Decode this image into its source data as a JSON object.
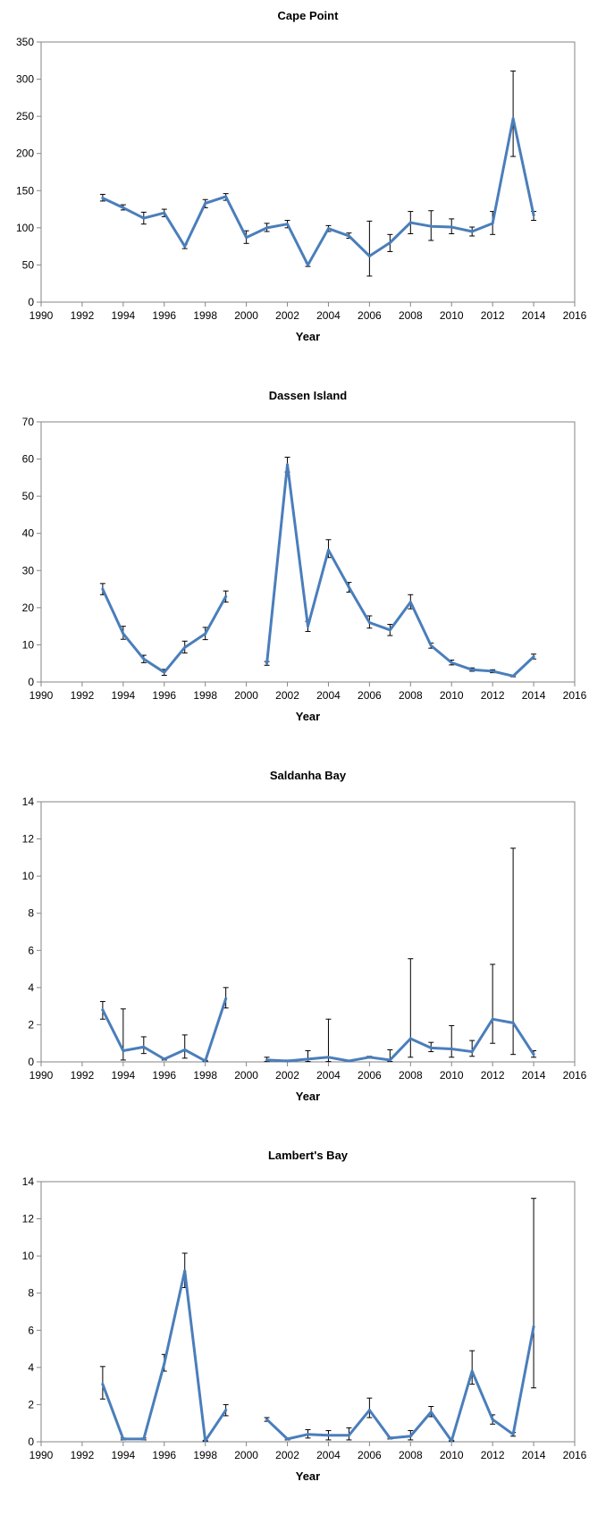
{
  "chart_data": [
    {
      "type": "line",
      "title": "Cape Point",
      "xlabel": "Year",
      "ylabel": "",
      "xlim": [
        1990,
        2016
      ],
      "ylim": [
        0,
        350
      ],
      "x_ticks": [
        1990,
        1992,
        1994,
        1996,
        1998,
        2000,
        2002,
        2004,
        2006,
        2008,
        2010,
        2012,
        2014,
        2016
      ],
      "y_ticks": [
        0,
        50,
        100,
        150,
        200,
        250,
        300,
        350
      ],
      "line_color": "#4a7ebb",
      "series": [
        {
          "segments": [
            {
              "x": [
                1993,
                1994,
                1995,
                1996,
                1997,
                1998,
                1999,
                2000,
                2001,
                2002,
                2003,
                2004,
                2005,
                2006,
                2007,
                2008,
                2009,
                2010,
                2011,
                2012,
                2013,
                2014
              ],
              "y": [
                140,
                127,
                113,
                120,
                75,
                133,
                142,
                87,
                100,
                105,
                50,
                99,
                89,
                62,
                80,
                107,
                102,
                101,
                95,
                106,
                247,
                117
              ],
              "err_high": [
                145,
                131,
                121,
                125,
                78,
                138,
                146,
                96,
                106,
                110,
                53,
                103,
                93,
                109,
                91,
                122,
                123,
                112,
                101,
                122,
                311,
                122
              ],
              "err_low": [
                136,
                124,
                105,
                115,
                72,
                127,
                137,
                79,
                95,
                100,
                48,
                95,
                86,
                35,
                68,
                92,
                83,
                92,
                89,
                91,
                196,
                110
              ]
            }
          ]
        }
      ]
    },
    {
      "type": "line",
      "title": "Dassen Island",
      "xlabel": "Year",
      "ylabel": "",
      "xlim": [
        1990,
        2016
      ],
      "ylim": [
        0,
        70
      ],
      "x_ticks": [
        1990,
        1992,
        1994,
        1996,
        1998,
        2000,
        2002,
        2004,
        2006,
        2008,
        2010,
        2012,
        2014,
        2016
      ],
      "y_ticks": [
        0,
        10,
        20,
        30,
        40,
        50,
        60,
        70
      ],
      "line_color": "#4a7ebb",
      "series": [
        {
          "segments": [
            {
              "x": [
                1993,
                1994,
                1995,
                1996,
                1997,
                1998,
                1999
              ],
              "y": [
                25,
                13,
                6.2,
                2.6,
                9.3,
                13,
                23
              ],
              "err_high": [
                26.5,
                15,
                7.2,
                3.4,
                11,
                14.7,
                24.5
              ],
              "err_low": [
                23.5,
                11.5,
                5.2,
                1.8,
                7.8,
                11.4,
                21.5
              ]
            },
            {
              "x": [
                2001,
                2002,
                2003,
                2004,
                2005,
                2006,
                2007,
                2008,
                2009,
                2010,
                2011,
                2012,
                2013,
                2014
              ],
              "y": [
                5,
                58.5,
                15,
                35.5,
                25.5,
                16,
                14,
                21.5,
                9.8,
                5.2,
                3.3,
                2.9,
                1.6,
                6.8
              ],
              "err_high": [
                5.5,
                60.5,
                16.3,
                38.3,
                26.8,
                17.8,
                15.5,
                23.5,
                10.5,
                5.9,
                3.8,
                3.3,
                1.8,
                7.5
              ],
              "err_low": [
                4.5,
                56.5,
                13.6,
                33.5,
                24.2,
                14.5,
                12.5,
                19.7,
                9.1,
                4.6,
                2.9,
                2.5,
                1.4,
                6.2
              ]
            }
          ]
        }
      ]
    },
    {
      "type": "line",
      "title": "Saldanha Bay",
      "xlabel": "Year",
      "ylabel": "",
      "xlim": [
        1990,
        2016
      ],
      "ylim": [
        0,
        14
      ],
      "x_ticks": [
        1990,
        1992,
        1994,
        1996,
        1998,
        2000,
        2002,
        2004,
        2006,
        2008,
        2010,
        2012,
        2014,
        2016
      ],
      "y_ticks": [
        0,
        2,
        4,
        6,
        8,
        10,
        12,
        14
      ],
      "line_color": "#4a7ebb",
      "series": [
        {
          "segments": [
            {
              "x": [
                1993,
                1994,
                1995,
                1996,
                1997,
                1998,
                1999
              ],
              "y": [
                2.8,
                0.6,
                0.8,
                0.15,
                0.65,
                0.05,
                3.4
              ],
              "err_high": [
                3.25,
                2.85,
                1.35,
                0.2,
                1.45,
                0.08,
                4
              ],
              "err_low": [
                2.3,
                0.1,
                0.45,
                0.1,
                0.2,
                0.02,
                2.9
              ]
            },
            {
              "x": [
                2001,
                2002,
                2003,
                2004,
                2005,
                2006,
                2007,
                2008,
                2009,
                2010,
                2011,
                2012,
                2013,
                2014
              ],
              "y": [
                0.1,
                0.05,
                0.15,
                0.25,
                0.05,
                0.25,
                0.1,
                1.25,
                0.75,
                0.7,
                0.55,
                2.3,
                2.1,
                0.4
              ],
              "err_high": [
                0.25,
                0.1,
                0.6,
                2.3,
                0.08,
                0.3,
                0.65,
                5.55,
                1.05,
                1.95,
                1.15,
                5.25,
                11.5,
                0.6
              ],
              "err_low": [
                0.02,
                0.01,
                0.02,
                0.02,
                0.02,
                0.2,
                0.02,
                0.25,
                0.55,
                0.25,
                0.3,
                1,
                0.4,
                0.25
              ]
            }
          ]
        }
      ]
    },
    {
      "type": "line",
      "title": "Lambert's Bay",
      "xlabel": "Year",
      "ylabel": "",
      "xlim": [
        1990,
        2016
      ],
      "ylim": [
        0,
        14
      ],
      "x_ticks": [
        1990,
        1992,
        1994,
        1996,
        1998,
        2000,
        2002,
        2004,
        2006,
        2008,
        2010,
        2012,
        2014,
        2016
      ],
      "y_ticks": [
        0,
        2,
        4,
        6,
        8,
        10,
        12,
        14
      ],
      "line_color": "#4a7ebb",
      "series": [
        {
          "segments": [
            {
              "x": [
                1993,
                1994,
                1995,
                1996,
                1997,
                1998,
                1999
              ],
              "y": [
                3.1,
                0.15,
                0.15,
                4.2,
                9.2,
                0.05,
                1.7
              ],
              "err_high": [
                4.05,
                0.2,
                0.2,
                4.7,
                10.15,
                0.08,
                2
              ],
              "err_low": [
                2.3,
                0.1,
                0.1,
                3.8,
                8.3,
                0.02,
                1.4
              ]
            },
            {
              "x": [
                2001,
                2002,
                2003,
                2004,
                2005,
                2006,
                2007,
                2008,
                2009,
                2010,
                2011,
                2012,
                2013,
                2014
              ],
              "y": [
                1.2,
                0.15,
                0.4,
                0.35,
                0.35,
                1.7,
                0.2,
                0.3,
                1.6,
                0.05,
                3.8,
                1.2,
                0.4,
                6.2
              ],
              "err_high": [
                1.3,
                0.2,
                0.65,
                0.6,
                0.75,
                2.35,
                0.25,
                0.6,
                1.9,
                0.08,
                4.9,
                1.45,
                0.5,
                13.1
              ],
              "err_low": [
                1.1,
                0.1,
                0.2,
                0.1,
                0.1,
                1.3,
                0.15,
                0.1,
                1.35,
                0.02,
                3.1,
                0.95,
                0.3,
                2.9
              ]
            }
          ]
        }
      ]
    }
  ]
}
